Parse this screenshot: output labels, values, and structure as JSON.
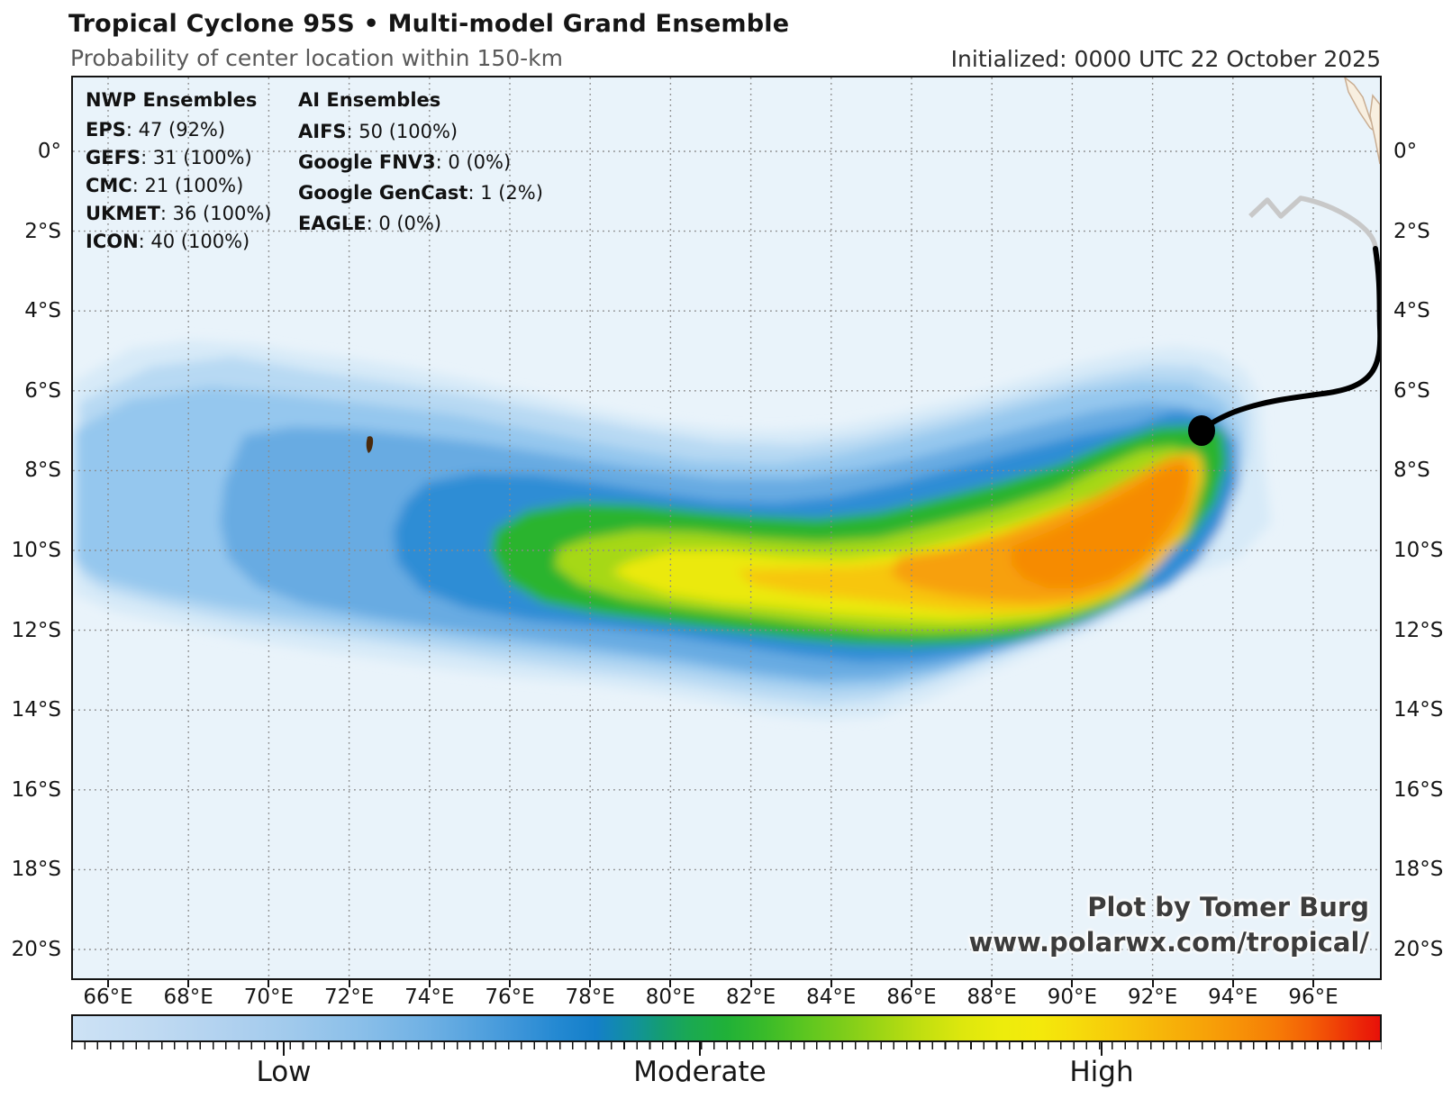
{
  "header": {
    "title": "Tropical Cyclone 95S • Multi-model Grand Ensemble",
    "subtitle": "Probability of center location within 150-km",
    "initialized": "Initialized: 0000 UTC 22 October 2025"
  },
  "legend": {
    "nwp": {
      "heading": "NWP Ensembles",
      "rows": [
        {
          "label": "EPS",
          "value": "47 (92%)"
        },
        {
          "label": "GEFS",
          "value": "31 (100%)"
        },
        {
          "label": "CMC",
          "value": "21 (100%)"
        },
        {
          "label": "UKMET",
          "value": "36 (100%)"
        },
        {
          "label": "ICON",
          "value": "40 (100%)"
        }
      ]
    },
    "ai": {
      "heading": "AI Ensembles",
      "rows": [
        {
          "label": "AIFS",
          "value": "50 (100%)"
        },
        {
          "label": "Google FNV3",
          "value": "0 (0%)"
        },
        {
          "label": "Google GenCast",
          "value": "1 (2%)"
        },
        {
          "label": "EAGLE",
          "value": "0 (0%)"
        }
      ]
    }
  },
  "axes": {
    "lon_labels": [
      "66°E",
      "68°E",
      "70°E",
      "72°E",
      "74°E",
      "76°E",
      "78°E",
      "80°E",
      "82°E",
      "84°E",
      "86°E",
      "88°E",
      "90°E",
      "92°E",
      "94°E",
      "96°E"
    ],
    "lat_labels": [
      "0°",
      "2°S",
      "4°S",
      "6°S",
      "8°S",
      "10°S",
      "12°S",
      "14°S",
      "16°S",
      "18°S",
      "20°S"
    ]
  },
  "colorbar": {
    "labels": [
      "Low",
      "Moderate",
      "High"
    ]
  },
  "attribution": {
    "line1": "Plot by Tomer Burg",
    "line2": "www.polarwx.com/tropical/"
  },
  "chart_data": {
    "type": "heatmap",
    "title": "Tropical Cyclone 95S • Multi-model Grand Ensemble",
    "subtitle": "Probability of center location within 150-km",
    "initialized": "0000 UTC 22 October 2025",
    "storm_id": "95S",
    "x_tick_labels": [
      "66°E",
      "68°E",
      "70°E",
      "72°E",
      "74°E",
      "76°E",
      "78°E",
      "80°E",
      "82°E",
      "84°E",
      "86°E",
      "88°E",
      "90°E",
      "92°E",
      "94°E",
      "96°E"
    ],
    "y_tick_labels": [
      "0°",
      "2°S",
      "4°S",
      "6°S",
      "8°S",
      "10°S",
      "12°S",
      "14°S",
      "16°S",
      "18°S",
      "20°S"
    ],
    "xlim_deg_east": [
      65.1,
      97.7
    ],
    "ylim_deg_lat": [
      -20.8,
      1.9
    ],
    "grid": true,
    "colorbar_labels": [
      "Low",
      "Moderate",
      "High"
    ],
    "colorbar_scale_hex": [
      "#cde2f5",
      "#54a2de",
      "#147fc9",
      "#20b138",
      "#edec0c",
      "#f7a608",
      "#e81109"
    ],
    "current_position_deg": {
      "lon": 93.3,
      "lat": -7.0
    },
    "probability_ridge_deg": [
      [
        79.0,
        -10.2
      ],
      [
        82.0,
        -10.3
      ],
      [
        85.0,
        -10.1
      ],
      [
        87.0,
        -9.6
      ],
      [
        89.0,
        -9.0
      ],
      [
        90.5,
        -8.4
      ],
      [
        92.0,
        -7.7
      ],
      [
        92.9,
        -7.1
      ]
    ],
    "probability_spread_extent_deg": {
      "west": 65.1,
      "east": 95.0,
      "north": -4.9,
      "south": -14.3
    },
    "high_probability_region": "orange arc from ~85°E,10.2°S curving northeast to ~93°E,7°S",
    "ensembles": {
      "nwp": [
        {
          "name": "EPS",
          "members": 47,
          "pct_active": 92
        },
        {
          "name": "GEFS",
          "members": 31,
          "pct_active": 100
        },
        {
          "name": "CMC",
          "members": 21,
          "pct_active": 100
        },
        {
          "name": "UKMET",
          "members": 36,
          "pct_active": 100
        },
        {
          "name": "ICON",
          "members": 40,
          "pct_active": 100
        }
      ],
      "ai": [
        {
          "name": "AIFS",
          "members": 50,
          "pct_active": 100
        },
        {
          "name": "Google FNV3",
          "members": 0,
          "pct_active": 0
        },
        {
          "name": "Google GenCast",
          "members": 1,
          "pct_active": 2
        },
        {
          "name": "EAGLE",
          "members": 0,
          "pct_active": 0
        }
      ]
    }
  }
}
